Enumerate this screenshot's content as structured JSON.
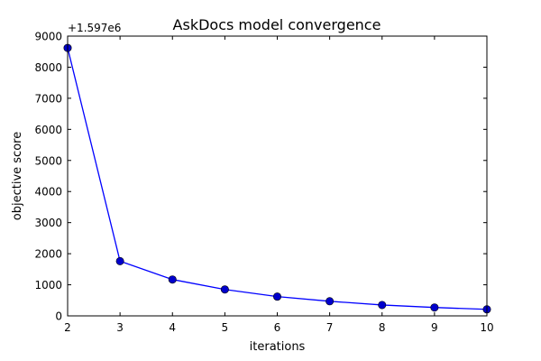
{
  "chart_data": {
    "type": "line",
    "title": "AskDocs model convergence",
    "xlabel": "iterations",
    "ylabel": "objective score",
    "y_offset_label": "+1.597e6",
    "xlim": [
      2,
      10
    ],
    "ylim": [
      0,
      9000
    ],
    "x_ticks": [
      2,
      3,
      4,
      5,
      6,
      7,
      8,
      9,
      10
    ],
    "y_ticks": [
      0,
      1000,
      2000,
      3000,
      4000,
      5000,
      6000,
      7000,
      8000,
      9000
    ],
    "grid": false,
    "line_color": "#0000ff",
    "marker_color": "#0000cc",
    "series": [
      {
        "x": [
          2,
          3,
          4,
          5,
          6,
          7,
          8,
          9,
          10
        ],
        "y": [
          8620,
          1760,
          1170,
          850,
          620,
          470,
          350,
          270,
          210
        ]
      }
    ]
  }
}
